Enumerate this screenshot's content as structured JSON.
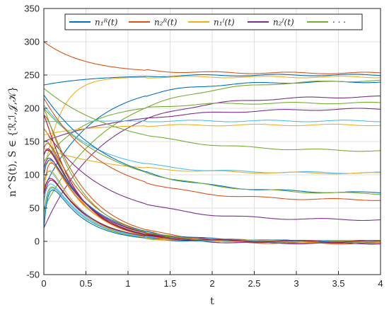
{
  "chart_data": {
    "type": "line",
    "xlabel": "t",
    "ylabel": "n^S(t), S ∈ {ℛ,ℐ,𝒥,𝒦}",
    "xlim": [
      0,
      4
    ],
    "ylim": [
      -50,
      350
    ],
    "xticks": [
      "0",
      "0.5",
      "1",
      "1.5",
      "2",
      "2.5",
      "3",
      "3.5",
      "4"
    ],
    "yticks": [
      "-50",
      "0",
      "50",
      "100",
      "150",
      "200",
      "250",
      "300",
      "350"
    ],
    "grid": true,
    "legend_position": "top",
    "legend": [
      {
        "label": "n₁ᴿ(t)",
        "color": "#0072bd"
      },
      {
        "label": "n₂ᴿ(t)",
        "color": "#d95319"
      },
      {
        "label": "n₁ᴵ(t)",
        "color": "#edb120"
      },
      {
        "label": "n₂ᴵ(t)",
        "color": "#7e2f8e"
      },
      {
        "label": "· · ·",
        "color": "#77ac30"
      }
    ],
    "colors": [
      "#0072bd",
      "#d95319",
      "#edb120",
      "#7e2f8e",
      "#77ac30",
      "#4dbeee",
      "#a2142f"
    ],
    "series": [
      {
        "color": "#d95319",
        "y0": 300,
        "yf": 253,
        "tau": 0.5,
        "peak": 0
      },
      {
        "color": "#0072bd",
        "y0": 235,
        "yf": 250,
        "tau": 0.6,
        "peak": 0
      },
      {
        "color": "#edb120",
        "y0": 100,
        "yf": 247,
        "tau": 0.2,
        "peak": 0
      },
      {
        "color": "#0072bd",
        "y0": 80,
        "yf": 240,
        "tau": 0.6,
        "peak": 0
      },
      {
        "color": "#77ac30",
        "y0": 50,
        "yf": 243,
        "tau": 0.8,
        "peak": 0
      },
      {
        "color": "#7e2f8e",
        "y0": 20,
        "yf": 218,
        "tau": 0.7,
        "peak": 0
      },
      {
        "color": "#77ac30",
        "y0": 120,
        "yf": 208,
        "tau": 0.5,
        "peak": 0
      },
      {
        "color": "#7e2f8e",
        "y0": 150,
        "yf": 200,
        "tau": 1.0,
        "peak": 0
      },
      {
        "color": "#4dbeee",
        "y0": 180,
        "yf": 181,
        "tau": 0.5,
        "peak": 0
      },
      {
        "color": "#edb120",
        "y0": 160,
        "yf": 175,
        "tau": 0.5,
        "peak": 0
      },
      {
        "color": "#77ac30",
        "y0": 230,
        "yf": 135,
        "tau": 0.9,
        "peak": 0
      },
      {
        "color": "#4dbeee",
        "y0": 205,
        "yf": 103,
        "tau": 0.6,
        "peak": 0
      },
      {
        "color": "#edb120",
        "y0": 140,
        "yf": 102,
        "tau": 0.8,
        "peak": 0
      },
      {
        "color": "#0072bd",
        "y0": 220,
        "yf": 72,
        "tau": 0.8,
        "peak": 0
      },
      {
        "color": "#77ac30",
        "y0": 200,
        "yf": 70,
        "tau": 0.9,
        "peak": 0
      },
      {
        "color": "#d95319",
        "y0": 215,
        "yf": 62,
        "tau": 0.7,
        "peak": 0
      },
      {
        "color": "#7e2f8e",
        "y0": 170,
        "yf": 32,
        "tau": 0.7,
        "peak": 0
      },
      {
        "color": "#d95319",
        "y0": 190,
        "yf": 0,
        "tau": 0.5,
        "peak": 20
      },
      {
        "color": "#0072bd",
        "y0": 150,
        "yf": 0,
        "tau": 0.45,
        "peak": 30
      },
      {
        "color": "#edb120",
        "y0": 100,
        "yf": 0,
        "tau": 0.5,
        "peak": 60
      },
      {
        "color": "#7e2f8e",
        "y0": 60,
        "yf": 0,
        "tau": 0.5,
        "peak": 70
      },
      {
        "color": "#77ac30",
        "y0": 40,
        "yf": -2,
        "tau": 0.55,
        "peak": 80
      },
      {
        "color": "#4dbeee",
        "y0": 90,
        "yf": 0,
        "tau": 0.45,
        "peak": 50
      },
      {
        "color": "#a2142f",
        "y0": 130,
        "yf": 0,
        "tau": 0.5,
        "peak": 40
      },
      {
        "color": "#d95319",
        "y0": 75,
        "yf": -3,
        "tau": 0.6,
        "peak": 90
      },
      {
        "color": "#0072bd",
        "y0": 20,
        "yf": 0,
        "tau": 0.5,
        "peak": 100
      },
      {
        "color": "#edb120",
        "y0": 170,
        "yf": 0,
        "tau": 0.4,
        "peak": 20
      },
      {
        "color": "#7e2f8e",
        "y0": 110,
        "yf": 0,
        "tau": 0.55,
        "peak": 50
      },
      {
        "color": "#77ac30",
        "y0": 150,
        "yf": 0,
        "tau": 0.45,
        "peak": 30
      },
      {
        "color": "#4dbeee",
        "y0": 60,
        "yf": 0,
        "tau": 0.5,
        "peak": 60
      },
      {
        "color": "#a2142f",
        "y0": 190,
        "yf": 0,
        "tau": 0.4,
        "peak": 10
      },
      {
        "color": "#d95319",
        "y0": 140,
        "yf": -2,
        "tau": 0.55,
        "peak": 40
      },
      {
        "color": "#0072bd",
        "y0": 100,
        "yf": 0,
        "tau": 0.6,
        "peak": 60
      },
      {
        "color": "#edb120",
        "y0": 80,
        "yf": 0,
        "tau": 0.4,
        "peak": 70
      },
      {
        "color": "#7e2f8e",
        "y0": 130,
        "yf": -3,
        "tau": 0.5,
        "peak": 45
      },
      {
        "color": "#77ac30",
        "y0": 200,
        "yf": 0,
        "tau": 0.45,
        "peak": 10
      },
      {
        "color": "#4dbeee",
        "y0": 30,
        "yf": 0,
        "tau": 0.6,
        "peak": 90
      },
      {
        "color": "#a2142f",
        "y0": 70,
        "yf": 0,
        "tau": 0.5,
        "peak": 60
      }
    ]
  }
}
